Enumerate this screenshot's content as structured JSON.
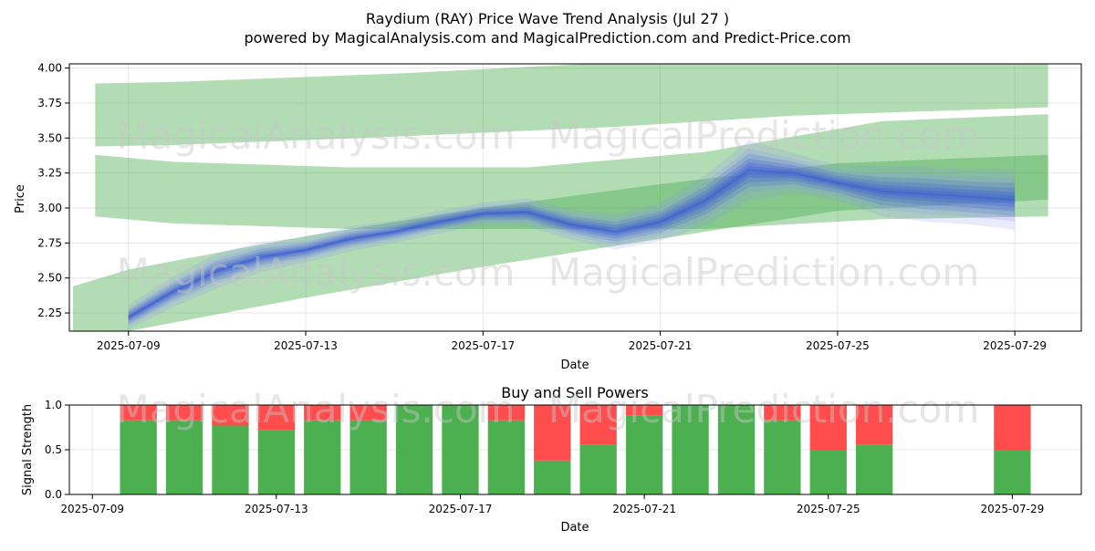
{
  "title": "Raydium (RAY) Price Wave Trend Analysis (Jul 27 )",
  "subtitle": "powered by MagicalAnalysis.com and MagicalPrediction.com and Predict-Price.com",
  "watermarks": [
    "MagicalAnalysis.com",
    "MagicalPrediction.com"
  ],
  "chart_data": [
    {
      "type": "line",
      "title": "",
      "xlabel": "Date",
      "ylabel": "Price",
      "x_range": [
        "2025-07-07T16:00",
        "2025-07-30T12:00"
      ],
      "ylim": [
        2.12,
        4.03
      ],
      "yticks": [
        2.25,
        2.5,
        2.75,
        3.0,
        3.25,
        3.5,
        3.75,
        4.0
      ],
      "ytick_labels": [
        "2.25",
        "2.50",
        "2.75",
        "3.00",
        "3.25",
        "3.50",
        "3.75",
        "4.00"
      ],
      "xticks": [
        "2025-07-09",
        "2025-07-13",
        "2025-07-17",
        "2025-07-21",
        "2025-07-25",
        "2025-07-29"
      ],
      "grid": true,
      "colors": {
        "band": "#4caf50",
        "wave": "#3f5fd0",
        "wave_light": "#8a8aff"
      },
      "bands": [
        {
          "x": [
            "2025-07-08T06:00",
            "2025-07-10T00:00",
            "2025-07-15T00:00",
            "2025-07-20T00:00",
            "2025-07-24T00:00",
            "2025-07-29T18:00"
          ],
          "upper": [
            3.89,
            3.9,
            3.96,
            4.04,
            4.04,
            4.04
          ],
          "lower": [
            3.44,
            3.45,
            3.51,
            3.58,
            3.66,
            3.72
          ]
        },
        {
          "x": [
            "2025-07-08T06:00",
            "2025-07-10T00:00",
            "2025-07-14T00:00",
            "2025-07-18T00:00",
            "2025-07-22T00:00",
            "2025-07-26T00:00",
            "2025-07-29T18:00"
          ],
          "upper": [
            3.38,
            3.33,
            3.29,
            3.29,
            3.4,
            3.62,
            3.67
          ],
          "lower": [
            2.94,
            2.89,
            2.85,
            2.85,
            2.85,
            2.92,
            2.94
          ]
        },
        {
          "x": [
            "2025-07-07T18:00",
            "2025-07-09T00:00",
            "2025-07-13T00:00",
            "2025-07-17T00:00",
            "2025-07-21T00:00",
            "2025-07-25T00:00",
            "2025-07-29T18:00"
          ],
          "upper": [
            2.44,
            2.56,
            2.8,
            3.0,
            3.17,
            3.32,
            3.38
          ],
          "lower": [
            2.0,
            2.12,
            2.36,
            2.58,
            2.78,
            2.98,
            3.06
          ]
        }
      ],
      "wave": {
        "x": [
          "2025-07-09T00:00",
          "2025-07-10T00:00",
          "2025-07-11T00:00",
          "2025-07-12T00:00",
          "2025-07-13T00:00",
          "2025-07-14T00:00",
          "2025-07-15T00:00",
          "2025-07-16T00:00",
          "2025-07-17T00:00",
          "2025-07-18T00:00",
          "2025-07-19T00:00",
          "2025-07-20T00:00",
          "2025-07-21T00:00",
          "2025-07-22T00:00",
          "2025-07-23T00:00",
          "2025-07-24T00:00",
          "2025-07-25T00:00",
          "2025-07-26T00:00",
          "2025-07-27T00:00",
          "2025-07-28T00:00",
          "2025-07-29T00:00"
        ],
        "y": [
          2.22,
          2.4,
          2.55,
          2.65,
          2.7,
          2.78,
          2.83,
          2.9,
          2.96,
          2.97,
          2.88,
          2.83,
          2.9,
          3.05,
          3.27,
          3.25,
          3.18,
          3.12,
          3.1,
          3.08,
          3.06
        ],
        "spread": [
          0.1,
          0.12,
          0.14,
          0.12,
          0.1,
          0.1,
          0.09,
          0.09,
          0.09,
          0.11,
          0.12,
          0.14,
          0.15,
          0.2,
          0.24,
          0.16,
          0.14,
          0.2,
          0.22,
          0.22,
          0.24
        ]
      }
    },
    {
      "type": "bar",
      "title": "Buy and Sell Powers",
      "xlabel": "Date",
      "ylabel": "Signal Strength",
      "x_range": [
        "2025-07-08T12:00",
        "2025-07-30T12:00"
      ],
      "ylim": [
        0,
        1
      ],
      "yticks": [
        0,
        0.5,
        1
      ],
      "ytick_labels": [
        "0.0",
        "0.5",
        "1.0"
      ],
      "xticks": [
        "2025-07-09",
        "2025-07-13",
        "2025-07-17",
        "2025-07-21",
        "2025-07-25",
        "2025-07-29"
      ],
      "grid": true,
      "colors": {
        "buy": "#4caf50",
        "sell": "#ff4c4c"
      },
      "x": [
        "2025-07-10",
        "2025-07-11",
        "2025-07-12",
        "2025-07-13",
        "2025-07-14",
        "2025-07-15",
        "2025-07-16",
        "2025-07-17",
        "2025-07-18",
        "2025-07-19",
        "2025-07-20",
        "2025-07-21",
        "2025-07-22",
        "2025-07-23",
        "2025-07-24",
        "2025-07-25",
        "2025-07-26",
        "2025-07-29"
      ],
      "buy": [
        0.83,
        0.83,
        0.77,
        0.72,
        0.83,
        0.83,
        1.0,
        1.0,
        0.83,
        0.38,
        0.56,
        0.88,
        1.0,
        1.0,
        0.83,
        0.5,
        0.56,
        0.5
      ],
      "sell": [
        0.17,
        0.17,
        0.23,
        0.28,
        0.17,
        0.17,
        0.0,
        0.0,
        0.17,
        0.62,
        0.44,
        0.12,
        0.0,
        0.0,
        0.17,
        0.5,
        0.44,
        0.5
      ]
    }
  ]
}
